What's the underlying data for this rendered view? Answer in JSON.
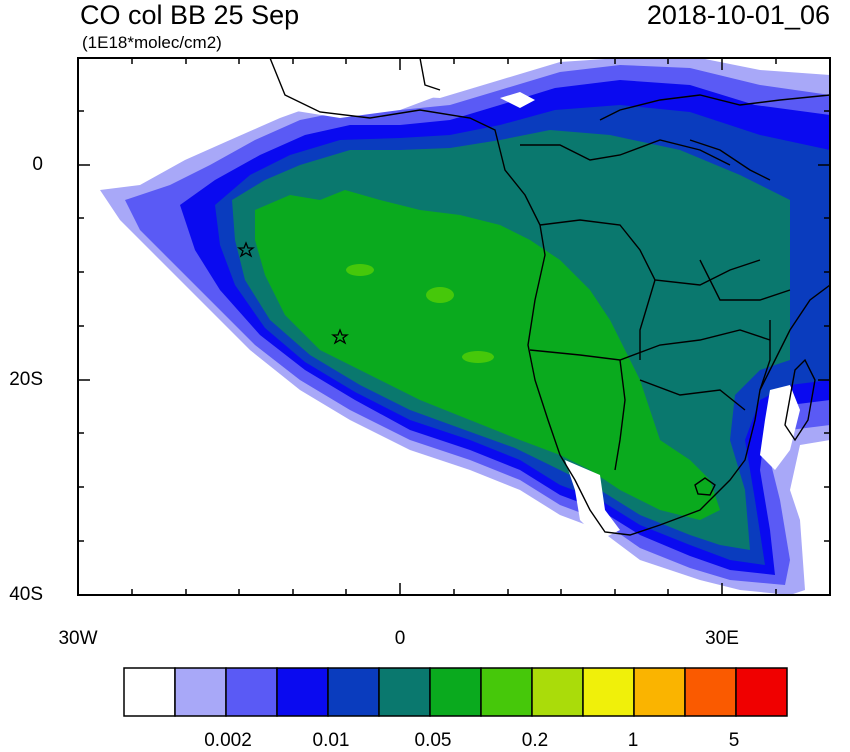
{
  "header": {
    "title": "CO col BB 25 Sep",
    "units": "(1E18*molec/cm2)",
    "timestamp": "2018-10-01_06"
  },
  "axes": {
    "y_ticks": [
      "0",
      "20S",
      "40S"
    ],
    "x_ticks": [
      "30W",
      "0",
      "30E"
    ]
  },
  "colorbar": {
    "colors": [
      "#ffffff",
      "#a8a8f8",
      "#5a5af5",
      "#0a0af0",
      "#0a3cbe",
      "#0a786e",
      "#0aaa1e",
      "#46c80a",
      "#aadc0a",
      "#f0f00a",
      "#fab400",
      "#fa5a00",
      "#f00000"
    ],
    "labels": [
      "0.002",
      "0.01",
      "0.05",
      "0.2",
      "1",
      "5"
    ]
  },
  "map": {
    "projection": "cylindrical equidistant",
    "lon_range": [
      -30,
      40
    ],
    "lat_range": [
      -40,
      10
    ],
    "markers": [
      {
        "name": "star",
        "lon": -14.4,
        "lat": -8.0
      },
      {
        "name": "star",
        "lon": -5.7,
        "lat": -15.9
      }
    ]
  }
}
